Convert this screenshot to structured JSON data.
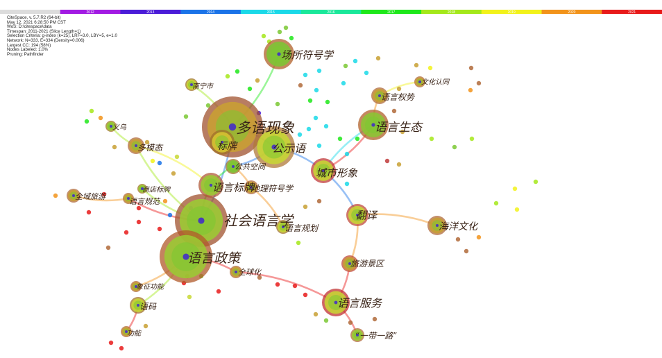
{
  "timeline": {
    "slices": [
      {
        "year": "",
        "color": "#dcdcdc"
      },
      {
        "year": "2012",
        "color": "#a21ae3"
      },
      {
        "year": "2013",
        "color": "#4a1bd8"
      },
      {
        "year": "2014",
        "color": "#1a73e8"
      },
      {
        "year": "2015",
        "color": "#1ad9e8"
      },
      {
        "year": "2016",
        "color": "#1ae89a"
      },
      {
        "year": "2017",
        "color": "#1ee81a"
      },
      {
        "year": "2018",
        "color": "#a4e81a"
      },
      {
        "year": "2019",
        "color": "#f2f21a"
      },
      {
        "year": "2020",
        "color": "#f2931a"
      },
      {
        "year": "2021",
        "color": "#e81a1a"
      }
    ]
  },
  "meta": [
    "CiteSpace, v. 5.7.R2 (64-bit)",
    "May 12, 2021 6:28:50 PM CST",
    "WoS: D:\\citespace\\data",
    "Timespan: 2011-2021 (Slice Length=1)",
    "Selection Criteria: g-index (k=25), LRF=3.0, LBY=5, e=1.0",
    "Network: N=333, E=334 (Density=0.006)",
    "Largest CC: 194 (58%)",
    "Nodes Labeled: 1.0%",
    "Pruning: Pathfinder"
  ],
  "nodes": [
    {
      "id": "duoyu",
      "label": "多语现象",
      "size": 44,
      "color": "#c9a032",
      "ring": "#a0522d"
    },
    {
      "id": "shehui",
      "label": "社会语言学",
      "size": 38,
      "color": "#9acd32",
      "ring": "#a0522d"
    },
    {
      "id": "zhengce",
      "label": "语言政策",
      "size": 38,
      "color": "#9acd32",
      "ring": "#b05a2a"
    },
    {
      "id": "gongshi",
      "label": "公示语",
      "size": 30,
      "color": "#c8d832",
      "ring": "#b07a3a"
    },
    {
      "id": "biaopai",
      "label": "标牌",
      "size": 18,
      "color": "#d8c832",
      "ring": "#a0702a"
    },
    {
      "id": "changsuo",
      "label": "场所符号学",
      "size": 22,
      "color": "#7ac832",
      "ring": "#b0602a"
    },
    {
      "id": "shengtai",
      "label": "语言生态",
      "size": 22,
      "color": "#8ac832",
      "ring": "#b0602a"
    },
    {
      "id": "chengshi",
      "label": "城市形象",
      "size": 18,
      "color": "#c8d832",
      "ring": "#c03a3a"
    },
    {
      "id": "fanyi",
      "label": "翻译",
      "size": 16,
      "color": "#c8d832",
      "ring": "#c04a3a"
    },
    {
      "id": "fuwu",
      "label": "语言服务",
      "size": 20,
      "color": "#c8d832",
      "ring": "#c03030"
    },
    {
      "id": "haiyang",
      "label": "海洋文化",
      "size": 14,
      "color": "#c8a032",
      "ring": "#b06a3a"
    },
    {
      "id": "biaopai2",
      "label": "语言标牌",
      "size": 18,
      "color": "#9acd32",
      "ring": "#b05a3a"
    },
    {
      "id": "gonggong",
      "label": "公共空间",
      "size": 11,
      "color": "#7ac832",
      "ring": "#a0702a"
    },
    {
      "id": "dili",
      "label": "地理符号学",
      "size": 10,
      "color": "#c8a032",
      "ring": "#b06a3a"
    },
    {
      "id": "duomotai",
      "label": "多模态",
      "size": 12,
      "color": "#c8a032",
      "ring": "#b06a3a"
    },
    {
      "id": "yiwu",
      "label": "义乌",
      "size": 8,
      "color": "#9acd32",
      "ring": "#a0702a"
    },
    {
      "id": "nanning",
      "label": "南宁市",
      "size": 9,
      "color": "#c8d832",
      "ring": "#a0702a"
    },
    {
      "id": "quanli",
      "label": "语言权势",
      "size": 12,
      "color": "#c8a032",
      "ring": "#b06a3a"
    },
    {
      "id": "wenhua",
      "label": "文化认同",
      "size": 8,
      "color": "#c8a032",
      "ring": "#b06a3a"
    },
    {
      "id": "quanyu",
      "label": "全域旅游",
      "size": 10,
      "color": "#c8a032",
      "ring": "#b06a3a"
    },
    {
      "id": "shangdian",
      "label": "商店标牌",
      "size": 7,
      "color": "#9acd32",
      "ring": "#a0702a"
    },
    {
      "id": "guifan",
      "label": "语言规范",
      "size": 8,
      "color": "#c8a032",
      "ring": "#b06a3a"
    },
    {
      "id": "guihua",
      "label": "语言规划",
      "size": 10,
      "color": "#c8d832",
      "ring": "#a0702a"
    },
    {
      "id": "quanqiu",
      "label": "全球化",
      "size": 9,
      "color": "#c8a032",
      "ring": "#b06a3a"
    },
    {
      "id": "lvyou",
      "label": "旅游景区",
      "size": 12,
      "color": "#c8a032",
      "ring": "#c04a3a"
    },
    {
      "id": "xiangzheng",
      "label": "象征功能",
      "size": 8,
      "color": "#c8a032",
      "ring": "#b06a3a"
    },
    {
      "id": "yuma",
      "label": "语码",
      "size": 12,
      "color": "#c8d832",
      "ring": "#a0702a"
    },
    {
      "id": "gongneng",
      "label": "功能",
      "size": 8,
      "color": "#c8a032",
      "ring": "#b06a3a"
    },
    {
      "id": "yidai",
      "label": "“一带一路”",
      "size": 10,
      "color": "#9acd32",
      "ring": "#b06a3a"
    }
  ]
}
